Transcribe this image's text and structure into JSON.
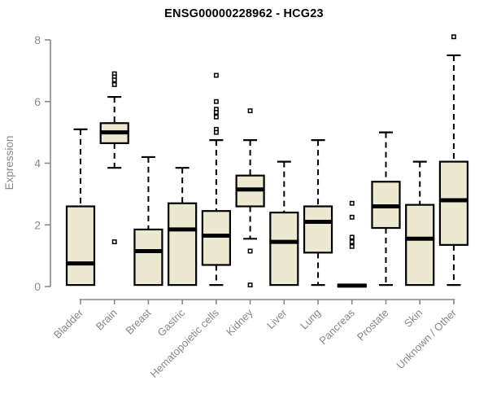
{
  "page": {
    "background_color": "#ffffff"
  },
  "header": {
    "title": "ENSG00000228962 - HCG23"
  },
  "chart_data": {
    "type": "boxplot",
    "title": "ENSG00000228962 - HCG23",
    "xlabel": "",
    "ylabel": "Expression",
    "yticks": [
      0,
      2,
      4,
      6,
      8
    ],
    "ylim": [
      0,
      8.2
    ],
    "grid": false,
    "legend": false,
    "box_fill_color": "#EDE8D0",
    "box_border_color": "#000000",
    "median_color": "#000000",
    "whisker_color": "#000000",
    "outlier_marker": "open-square",
    "axis_color": "#878787",
    "title_color": "#000000",
    "categories": [
      "Bladder",
      "Brain",
      "Breast",
      "Gastric",
      "Hematopoietic cells",
      "Kidney",
      "Liver",
      "Lung",
      "Pancreas",
      "Prostate",
      "Skin",
      "Unknown / Other"
    ],
    "boxes": [
      {
        "label": "Bladder",
        "whislo": 0.05,
        "q1": 0.05,
        "med": 0.75,
        "q3": 2.6,
        "whishi": 5.1,
        "outliers": []
      },
      {
        "label": "Brain",
        "whislo": 3.85,
        "q1": 4.65,
        "med": 5.0,
        "q3": 5.3,
        "whishi": 6.15,
        "outliers": [
          6.9,
          6.8,
          6.7,
          6.55,
          1.45
        ]
      },
      {
        "label": "Breast",
        "whislo": 0.05,
        "q1": 0.05,
        "med": 1.15,
        "q3": 1.85,
        "whishi": 4.2,
        "outliers": []
      },
      {
        "label": "Gastric",
        "whislo": 0.05,
        "q1": 0.05,
        "med": 1.85,
        "q3": 2.7,
        "whishi": 3.85,
        "outliers": []
      },
      {
        "label": "Hematopoietic cells",
        "whislo": 0.05,
        "q1": 0.7,
        "med": 1.65,
        "q3": 2.45,
        "whishi": 4.75,
        "outliers": [
          6.85,
          6.0,
          5.75,
          5.65,
          5.5,
          5.1,
          5.0
        ]
      },
      {
        "label": "Kidney",
        "whislo": 1.55,
        "q1": 2.6,
        "med": 3.15,
        "q3": 3.6,
        "whishi": 4.75,
        "outliers": [
          5.7,
          1.15,
          0.05
        ]
      },
      {
        "label": "Liver",
        "whislo": 0.05,
        "q1": 0.05,
        "med": 1.45,
        "q3": 2.4,
        "whishi": 4.05,
        "outliers": []
      },
      {
        "label": "Lung",
        "whislo": 0.05,
        "q1": 1.1,
        "med": 2.1,
        "q3": 2.6,
        "whishi": 4.75,
        "outliers": []
      },
      {
        "label": "Pancreas",
        "whislo": 0.02,
        "q1": 0.02,
        "med": 0.03,
        "q3": 0.05,
        "whishi": 0.05,
        "outliers": [
          2.7,
          2.25,
          1.6,
          1.45,
          1.3
        ]
      },
      {
        "label": "Prostate",
        "whislo": 0.05,
        "q1": 1.9,
        "med": 2.6,
        "q3": 3.4,
        "whishi": 5.0,
        "outliers": []
      },
      {
        "label": "Skin",
        "whislo": 0.05,
        "q1": 0.05,
        "med": 1.55,
        "q3": 2.65,
        "whishi": 4.05,
        "outliers": []
      },
      {
        "label": "Unknown / Other",
        "whislo": 0.05,
        "q1": 1.35,
        "med": 2.8,
        "q3": 4.05,
        "whishi": 7.5,
        "outliers": [
          8.1
        ]
      }
    ]
  }
}
